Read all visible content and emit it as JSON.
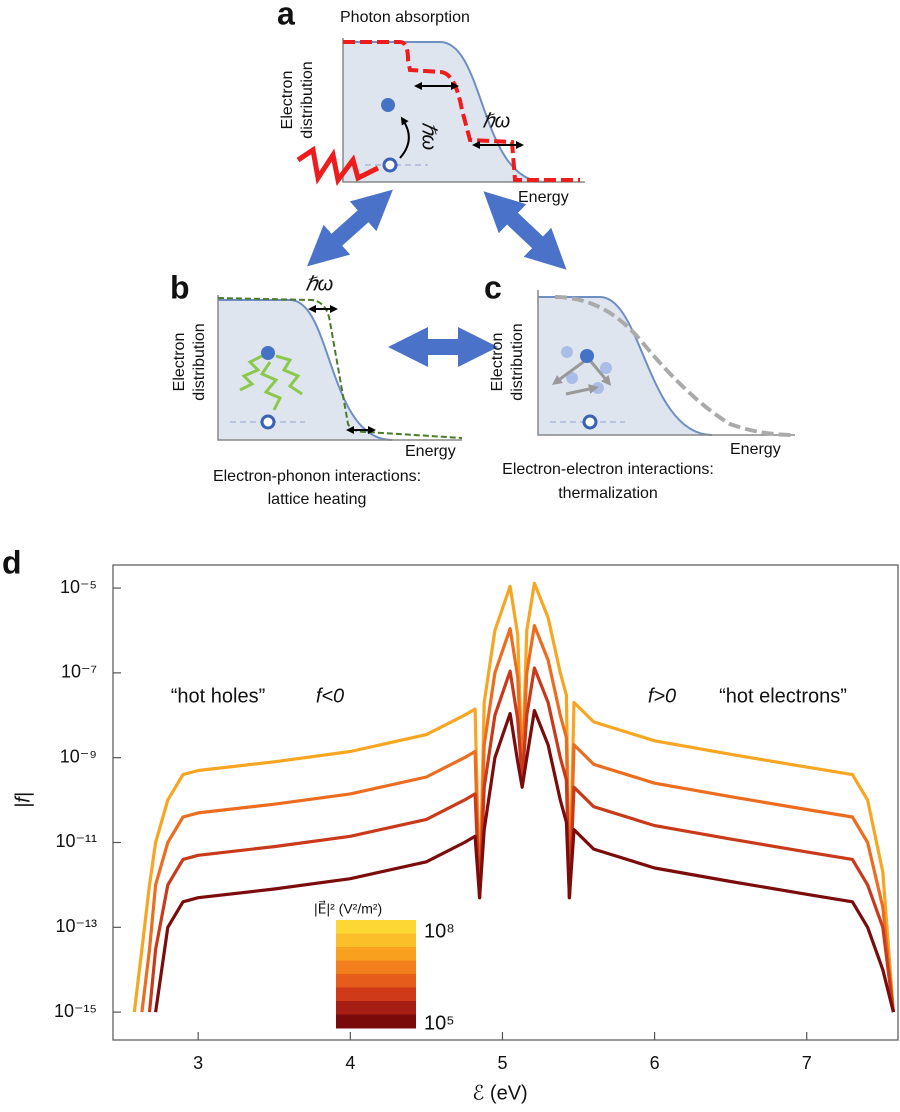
{
  "panels": {
    "a": {
      "letter": "a",
      "title": "Photon absorption",
      "y_label": [
        "Electron",
        "distribution"
      ],
      "x_label": "Energy",
      "hbar_omega": [
        "ℏω",
        "ℏω"
      ]
    },
    "b": {
      "letter": "b",
      "y_label": [
        "Electron",
        "distribution"
      ],
      "x_label": "Energy",
      "hbar_omega": "ℏω",
      "caption": [
        "Electron-phonon interactions:",
        "lattice heating"
      ]
    },
    "c": {
      "letter": "c",
      "y_label": [
        "Electron",
        "distribution"
      ],
      "x_label": "Energy",
      "caption": [
        "Electron-electron interactions:",
        "thermalization"
      ]
    }
  },
  "chart_data": {
    "type": "line",
    "letter": "d",
    "y_label": "|f|",
    "x_label": "ℰ (eV)",
    "yscale": "log",
    "annotations": [
      "“hot holes”",
      "f<0",
      "f>0",
      "“hot electrons”"
    ],
    "xlim": [
      2.44,
      7.6
    ],
    "xticks": [
      3,
      4,
      5,
      6,
      7
    ],
    "ylim": [
      2.2e-16,
      3.5e-05
    ],
    "yticks": [
      {
        "value": 1e-15,
        "label": "10⁻¹⁵"
      },
      {
        "value": 1e-13,
        "label": "10⁻¹³"
      },
      {
        "value": 1e-11,
        "label": "10⁻¹¹"
      },
      {
        "value": 1e-09,
        "label": "10⁻⁹"
      },
      {
        "value": 1e-07,
        "label": "10⁻⁷"
      },
      {
        "value": 1e-05,
        "label": "10⁻⁵"
      }
    ],
    "x": [
      2.58,
      2.63,
      2.68,
      2.72,
      2.8,
      2.9,
      3.0,
      3.5,
      4.0,
      4.5,
      4.75,
      4.82,
      4.85,
      4.88,
      4.95,
      5.05,
      5.1,
      5.13,
      5.16,
      5.21,
      5.3,
      5.38,
      5.42,
      5.44,
      5.47,
      5.6,
      6.0,
      6.5,
      7.0,
      7.3,
      7.4,
      7.5,
      7.57
    ],
    "series": [
      {
        "color": "#f6a623",
        "values": [
          1e-15,
          3e-14,
          1e-12,
          1e-11,
          1e-10,
          4e-10,
          5e-10,
          8e-10,
          1.4e-09,
          3.5e-09,
          1e-08,
          1.4e-08,
          5e-13,
          2e-08,
          1e-06,
          1.1e-05,
          8e-07,
          5e-10,
          1e-06,
          1.3e-05,
          2e-06,
          1e-07,
          3e-08,
          5e-13,
          2e-08,
          7e-09,
          2.5e-09,
          1.2e-09,
          6e-10,
          4e-10,
          1e-10,
          2e-12,
          1e-15
        ]
      },
      {
        "color": "#ec6d1f",
        "values": [
          null,
          1e-15,
          3e-14,
          1e-12,
          1e-11,
          4e-11,
          5e-11,
          8e-11,
          1.4e-10,
          3.5e-10,
          1e-09,
          1.4e-09,
          5e-13,
          2e-09,
          1e-07,
          1.1e-06,
          8e-08,
          5e-10,
          1e-07,
          1.3e-06,
          2e-07,
          1e-08,
          3e-09,
          5e-13,
          2e-09,
          7e-10,
          2.5e-10,
          1.2e-10,
          6e-11,
          4e-11,
          1e-11,
          3e-13,
          1e-15
        ]
      },
      {
        "color": "#c93a1a",
        "values": [
          null,
          null,
          1e-15,
          3e-14,
          1e-12,
          4e-12,
          5e-12,
          8e-12,
          1.4e-11,
          3.5e-11,
          1e-10,
          1.4e-10,
          5e-13,
          2e-10,
          1e-08,
          1.1e-07,
          8e-09,
          3e-10,
          1e-08,
          1.3e-07,
          2e-08,
          1e-09,
          3e-10,
          5e-13,
          2e-10,
          7e-11,
          2.5e-11,
          1.2e-11,
          6e-12,
          4e-12,
          1e-12,
          1e-13,
          1e-15
        ]
      },
      {
        "color": "#7c0c0c",
        "values": [
          null,
          null,
          null,
          1e-15,
          1e-13,
          4e-13,
          5e-13,
          8e-13,
          1.4e-12,
          3.5e-12,
          1e-11,
          1.4e-11,
          5e-13,
          2e-11,
          1e-09,
          1.1e-08,
          8e-10,
          2e-10,
          1e-09,
          1.3e-08,
          2e-09,
          1e-10,
          3e-11,
          5e-13,
          2e-11,
          7e-12,
          2.5e-12,
          1.2e-12,
          6e-13,
          4e-13,
          1e-13,
          1e-14,
          1e-15
        ]
      }
    ],
    "colorbar": {
      "title": "|E⃗|² (V²/m²)",
      "colors": [
        "#fdd835",
        "#fbbf2a",
        "#f9a11f",
        "#f37f1c",
        "#e65c1a",
        "#cf3a18",
        "#a61e14",
        "#7a0a0a"
      ],
      "labels": [
        "10⁸",
        "10⁵"
      ]
    }
  }
}
